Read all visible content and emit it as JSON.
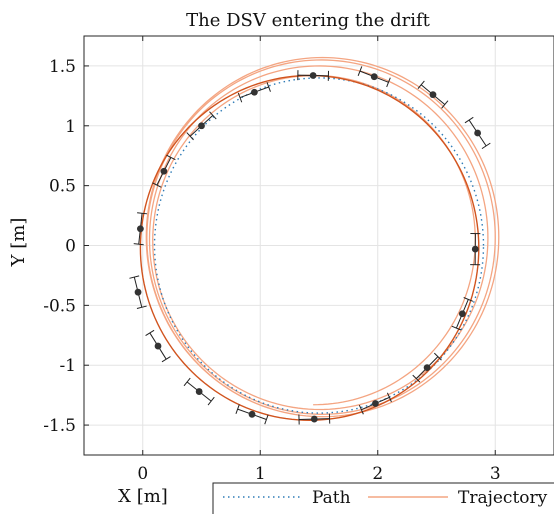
{
  "chart_data": {
    "type": "line",
    "title": "The DSV entering the drift",
    "xlabel": "X [m]",
    "ylabel": "Y [m]",
    "xlim": [
      -0.5,
      3.5
    ],
    "ylim": [
      -1.75,
      1.75
    ],
    "grid": true,
    "legend": {
      "placement": "bottom",
      "orientation": "horizontal"
    },
    "x_ticks": [
      0,
      1,
      2,
      3
    ],
    "y_ticks": [
      -1.5,
      -1,
      -0.5,
      0,
      0.5,
      1,
      1.5
    ],
    "x_tick_labels": [
      "0",
      "1",
      "2",
      "3"
    ],
    "y_tick_labels": [
      "-1.5",
      "-1",
      "-0.5",
      "0",
      "0.5",
      "1",
      "1.5"
    ],
    "colors": {
      "path": "#2e7bb6",
      "trajectory": "#f4a582",
      "fitted_circle": "#d1541f",
      "markers": "#333333",
      "error_bars": "#222222",
      "grid": "#e4e4e4"
    },
    "series": [
      {
        "name": "Path",
        "style": "dotted",
        "shape": "circle",
        "center": [
          1.5,
          0.0
        ],
        "radius": 1.4
      },
      {
        "name": "Trajectory",
        "style": "solid",
        "shape": "spiral",
        "loops": [
          {
            "center": [
              1.45,
              0.02
            ],
            "radius": 1.35
          },
          {
            "center": [
              1.5,
              0.05
            ],
            "radius": 1.42
          },
          {
            "center": [
              1.52,
              0.06
            ],
            "radius": 1.47
          },
          {
            "center": [
              1.53,
              0.07
            ],
            "radius": 1.5
          }
        ]
      },
      {
        "shape": "circle",
        "style": "solid",
        "center": [
          1.42,
          -0.02
        ],
        "radius": 1.44
      }
    ],
    "markers": [
      {
        "x": 1.45,
        "y": 1.42
      },
      {
        "x": 1.97,
        "y": 1.41
      },
      {
        "x": 2.47,
        "y": 1.26
      },
      {
        "x": 2.85,
        "y": 0.94
      },
      {
        "x": 2.83,
        "y": -0.03
      },
      {
        "x": 2.72,
        "y": -0.57
      },
      {
        "x": 2.42,
        "y": -1.02
      },
      {
        "x": 1.98,
        "y": -1.32
      },
      {
        "x": 1.46,
        "y": -1.45
      },
      {
        "x": 0.93,
        "y": -1.41
      },
      {
        "x": 0.48,
        "y": -1.22
      },
      {
        "x": 0.13,
        "y": -0.84
      },
      {
        "x": -0.04,
        "y": -0.39
      },
      {
        "x": -0.02,
        "y": 0.14
      },
      {
        "x": 0.18,
        "y": 0.62
      },
      {
        "x": 0.5,
        "y": 1.0
      },
      {
        "x": 0.95,
        "y": 1.28
      }
    ],
    "error_bar_halfwidth": 0.13
  }
}
